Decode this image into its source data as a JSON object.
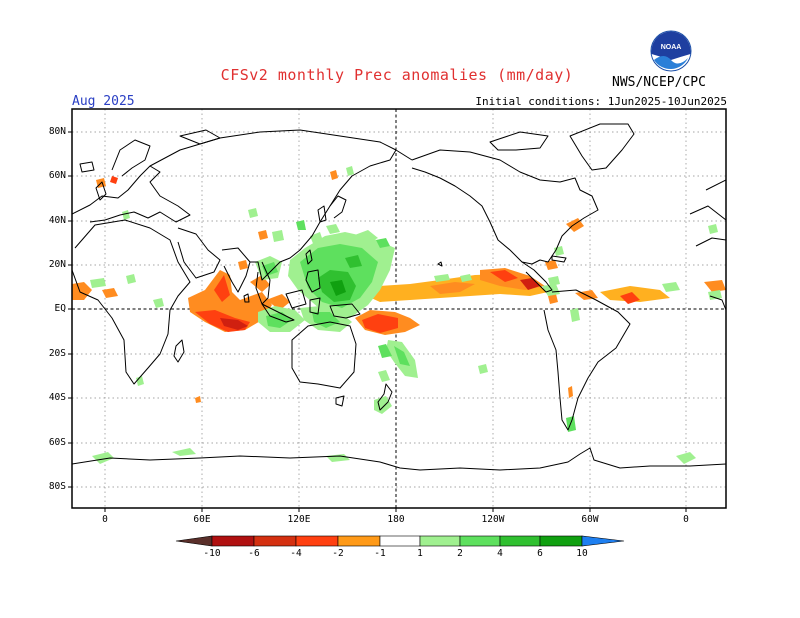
{
  "header": {
    "title": "CFSv2 monthly Prec anomalies (mm/day)",
    "agency": "NWS/NCEP/CPC",
    "month": "Aug 2025",
    "initial_conditions": "Initial conditions: 1Jun2025-10Jun2025",
    "logo_text": "NOAA"
  },
  "axes": {
    "lat_labels": [
      "80N",
      "60N",
      "40N",
      "20N",
      "EQ",
      "20S",
      "40S",
      "60S",
      "80S"
    ],
    "lon_labels": [
      "0",
      "60E",
      "120E",
      "180",
      "120W",
      "60W",
      "0"
    ]
  },
  "colorbar": {
    "labels": [
      "-10",
      "-6",
      "-4",
      "-2",
      "-1",
      "1",
      "2",
      "4",
      "6",
      "10"
    ],
    "colors": [
      "#5a2f2a",
      "#b01010",
      "#d43010",
      "#ff4010",
      "#ff8020",
      "#ffb020",
      "#a0f090",
      "#5ee05e",
      "#30c030",
      "#10a010",
      "#089008",
      "#1e7ff0"
    ]
  }
}
